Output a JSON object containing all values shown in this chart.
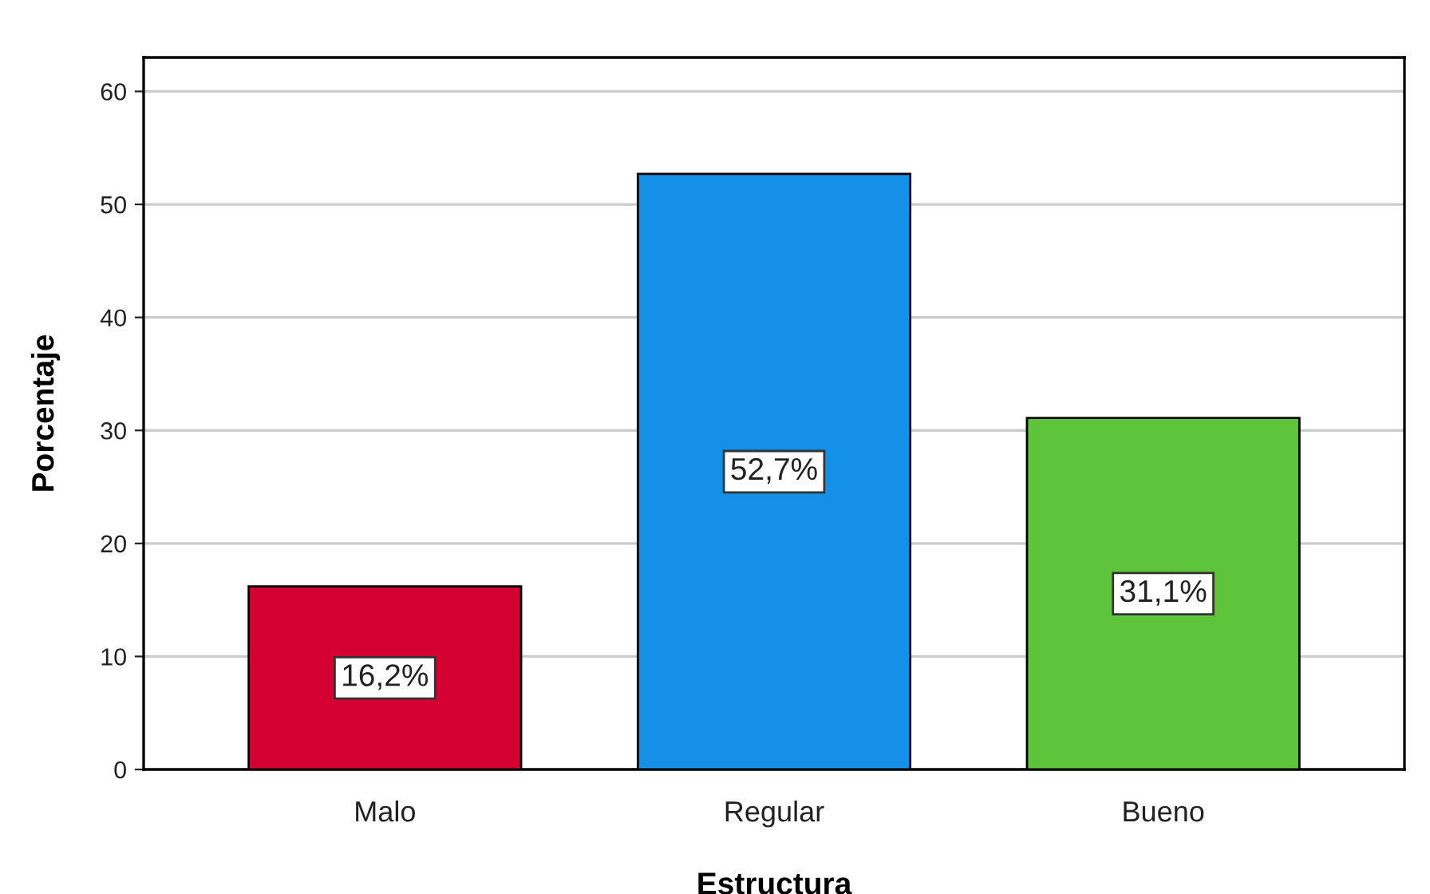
{
  "chart_data": {
    "type": "bar",
    "xlabel": "Estructura",
    "ylabel": "Porcentaje",
    "categories": [
      "Malo",
      "Regular",
      "Bueno"
    ],
    "values": [
      16.2,
      52.7,
      31.1
    ],
    "colors": [
      "#d50032",
      "#1490e8",
      "#5dc43b"
    ],
    "value_labels": [
      "16,2%",
      "52,7%",
      "31,1%"
    ],
    "ylim": [
      0,
      63
    ],
    "yticks": [
      0,
      10,
      20,
      30,
      40,
      50,
      60
    ],
    "grid": "y",
    "legend": false
  }
}
